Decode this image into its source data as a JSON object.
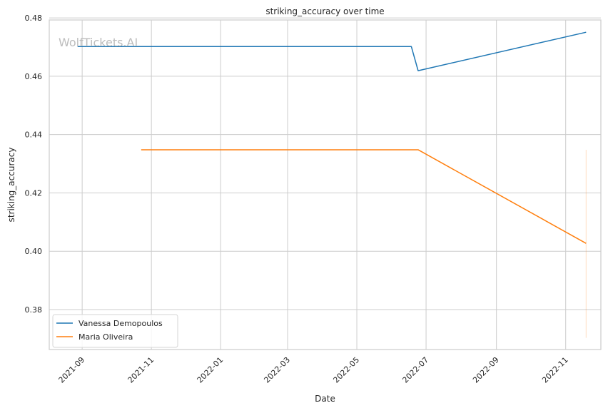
{
  "chart_data": {
    "type": "line",
    "title": "striking_accuracy over time",
    "xlabel": "Date",
    "ylabel": "striking_accuracy",
    "watermark": "WolfTickets.AI",
    "xlim": [
      "2021-08-03",
      "2022-12-02"
    ],
    "ylim": [
      0.3663,
      0.4793
    ],
    "x_ticks": [
      "2021-09",
      "2021-11",
      "2022-01",
      "2022-03",
      "2022-05",
      "2022-07",
      "2022-09",
      "2022-11"
    ],
    "y_ticks": [
      "0.38",
      "0.40",
      "0.42",
      "0.44",
      "0.46",
      "0.48"
    ],
    "grid": true,
    "legend_position": "lower-left",
    "series": [
      {
        "name": "Vanessa Demopoulos",
        "color": "#1f77b4",
        "points": [
          {
            "x": "2021-08-28",
            "y": 0.4702
          },
          {
            "x": "2022-06-18",
            "y": 0.4702
          },
          {
            "x": "2022-06-24",
            "y": 0.4619
          },
          {
            "x": "2022-11-19",
            "y": 0.4751
          }
        ]
      },
      {
        "name": "Maria Oliveira",
        "color": "#ff7f0e",
        "points": [
          {
            "x": "2021-10-23",
            "y": 0.4348
          },
          {
            "x": "2022-06-24",
            "y": 0.4348
          },
          {
            "x": "2022-11-19",
            "y": 0.4027
          }
        ]
      }
    ],
    "band": {
      "x": "2022-11-19",
      "y_min": 0.3703,
      "y_max": 0.4348,
      "color": "#ff7f0e"
    }
  }
}
